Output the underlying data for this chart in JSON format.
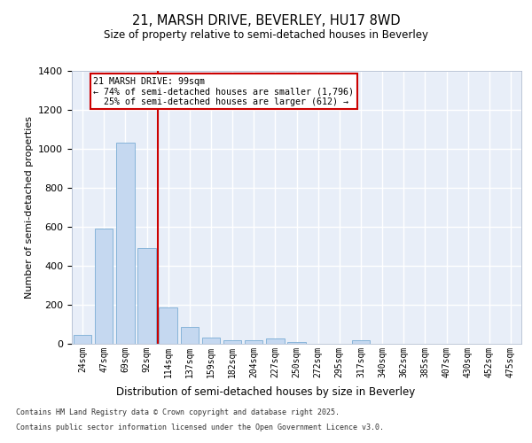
{
  "title1": "21, MARSH DRIVE, BEVERLEY, HU17 8WD",
  "title2": "Size of property relative to semi-detached houses in Beverley",
  "xlabel": "Distribution of semi-detached houses by size in Beverley",
  "ylabel": "Number of semi-detached properties",
  "categories": [
    "24sqm",
    "47sqm",
    "69sqm",
    "92sqm",
    "114sqm",
    "137sqm",
    "159sqm",
    "182sqm",
    "204sqm",
    "227sqm",
    "250sqm",
    "272sqm",
    "295sqm",
    "317sqm",
    "340sqm",
    "362sqm",
    "385sqm",
    "407sqm",
    "430sqm",
    "452sqm",
    "475sqm"
  ],
  "bar_values": [
    45,
    590,
    1030,
    490,
    185,
    85,
    28,
    15,
    15,
    25,
    5,
    0,
    0,
    15,
    0,
    0,
    0,
    0,
    0,
    0,
    0
  ],
  "bar_color": "#c5d8f0",
  "bar_edge_color": "#7aadd4",
  "annotation_line1": "21 MARSH DRIVE: 99sqm",
  "annotation_line2": "← 74% of semi-detached houses are smaller (1,796)",
  "annotation_line3": "  25% of semi-detached houses are larger (612) →",
  "ylim": [
    0,
    1400
  ],
  "yticks": [
    0,
    200,
    400,
    600,
    800,
    1000,
    1200,
    1400
  ],
  "red_line_color": "#cc0000",
  "background_color": "#e8eef8",
  "grid_color": "#ffffff",
  "footer_line1": "Contains HM Land Registry data © Crown copyright and database right 2025.",
  "footer_line2": "Contains public sector information licensed under the Open Government Licence v3.0."
}
